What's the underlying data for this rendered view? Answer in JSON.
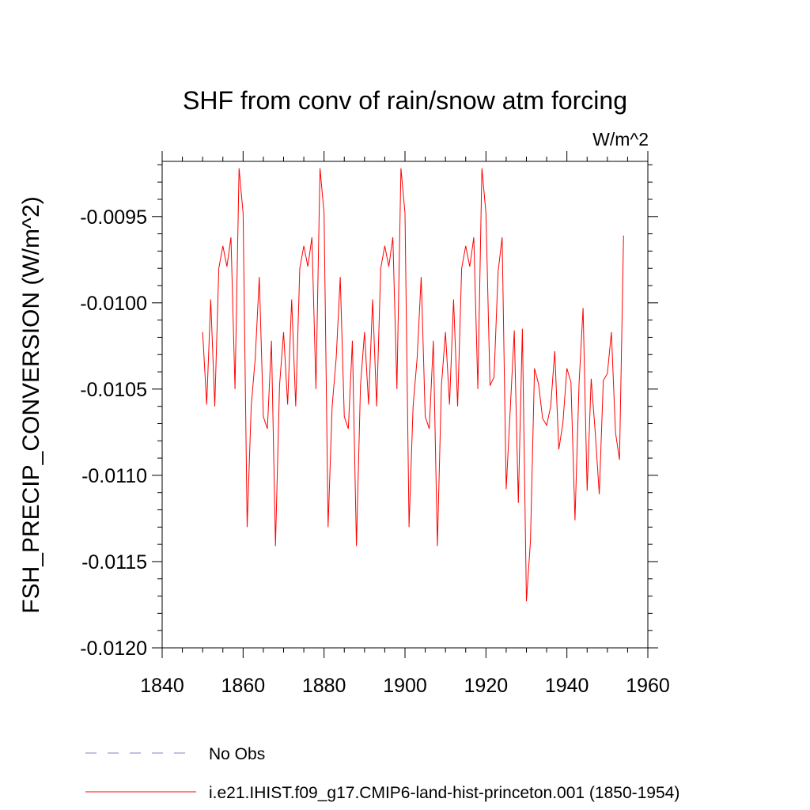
{
  "chart_data": {
    "type": "line",
    "title": "SHF from conv of rain/snow atm forcing",
    "units": "W/m^2",
    "xlabel": "",
    "ylabel": "FSH_PRECIP_CONVERSION  (W/m^2)",
    "xlim": [
      1840,
      1960
    ],
    "ylim": [
      -0.012,
      -0.00918
    ],
    "x_ticks": [
      1840,
      1860,
      1880,
      1900,
      1920,
      1940,
      1960
    ],
    "x_tick_labels": [
      "1840",
      "1860",
      "1880",
      "1900",
      "1920",
      "1940",
      "1960"
    ],
    "y_ticks": [
      -0.012,
      -0.0115,
      -0.011,
      -0.0105,
      -0.01,
      -0.0095
    ],
    "y_tick_labels": [
      "-0.0120",
      "-0.0115",
      "-0.0110",
      "-0.0105",
      "-0.0100",
      "-0.0095"
    ],
    "grid": false,
    "legend_position": "bottom-left",
    "legend": [
      {
        "label": "No Obs",
        "color": "#8a7fc0",
        "style": "dashed"
      },
      {
        "label": "i.e21.IHIST.f09_g17.CMIP6-land-hist-princeton.001 (1850-1954)",
        "color": "#ff0000",
        "style": "solid"
      }
    ],
    "series": [
      {
        "name": "i.e21.IHIST.f09_g17.CMIP6-land-hist-princeton.001 (1850-1954)",
        "color": "#ff0000",
        "x": [
          1850,
          1851,
          1852,
          1853,
          1854,
          1855,
          1856,
          1857,
          1858,
          1859,
          1860,
          1861,
          1862,
          1863,
          1864,
          1865,
          1866,
          1867,
          1868,
          1869,
          1870,
          1871,
          1872,
          1873,
          1874,
          1875,
          1876,
          1877,
          1878,
          1879,
          1880,
          1881,
          1882,
          1883,
          1884,
          1885,
          1886,
          1887,
          1888,
          1889,
          1890,
          1891,
          1892,
          1893,
          1894,
          1895,
          1896,
          1897,
          1898,
          1899,
          1900,
          1901,
          1902,
          1903,
          1904,
          1905,
          1906,
          1907,
          1908,
          1909,
          1910,
          1911,
          1912,
          1913,
          1914,
          1915,
          1916,
          1917,
          1918,
          1919,
          1920,
          1921,
          1922,
          1923,
          1924,
          1925,
          1926,
          1927,
          1928,
          1929,
          1930,
          1931,
          1932,
          1933,
          1934,
          1935,
          1936,
          1937,
          1938,
          1939,
          1940,
          1941,
          1942,
          1943,
          1944,
          1945,
          1946,
          1947,
          1948,
          1949,
          1950,
          1951,
          1952,
          1953,
          1954
        ],
        "values": [
          -0.01017,
          -0.01059,
          -0.00998,
          -0.0106,
          -0.0098,
          -0.00967,
          -0.00979,
          -0.00962,
          -0.0105,
          -0.00922,
          -0.00948,
          -0.0113,
          -0.0106,
          -0.01032,
          -0.00985,
          -0.01066,
          -0.01073,
          -0.01022,
          -0.01141,
          -0.01048,
          -0.01017,
          -0.01059,
          -0.00998,
          -0.0106,
          -0.0098,
          -0.00967,
          -0.00979,
          -0.00962,
          -0.0105,
          -0.00922,
          -0.00948,
          -0.0113,
          -0.0106,
          -0.01032,
          -0.00985,
          -0.01066,
          -0.01073,
          -0.01022,
          -0.01141,
          -0.01048,
          -0.01017,
          -0.01059,
          -0.00998,
          -0.0106,
          -0.0098,
          -0.00967,
          -0.00979,
          -0.00962,
          -0.0105,
          -0.00922,
          -0.00948,
          -0.0113,
          -0.0106,
          -0.01032,
          -0.00985,
          -0.01066,
          -0.01073,
          -0.01022,
          -0.01141,
          -0.01048,
          -0.01017,
          -0.01059,
          -0.00998,
          -0.0106,
          -0.0098,
          -0.00967,
          -0.00979,
          -0.00962,
          -0.0105,
          -0.00922,
          -0.00948,
          -0.01048,
          -0.01043,
          -0.00982,
          -0.00962,
          -0.01108,
          -0.01062,
          -0.01016,
          -0.01116,
          -0.01015,
          -0.01173,
          -0.01138,
          -0.01038,
          -0.01047,
          -0.01067,
          -0.01071,
          -0.0106,
          -0.01028,
          -0.01085,
          -0.0107,
          -0.01038,
          -0.01046,
          -0.01126,
          -0.01047,
          -0.01003,
          -0.01109,
          -0.01044,
          -0.01075,
          -0.01111,
          -0.01045,
          -0.01041,
          -0.01017,
          -0.01075,
          -0.01091,
          -0.00961
        ]
      }
    ]
  }
}
